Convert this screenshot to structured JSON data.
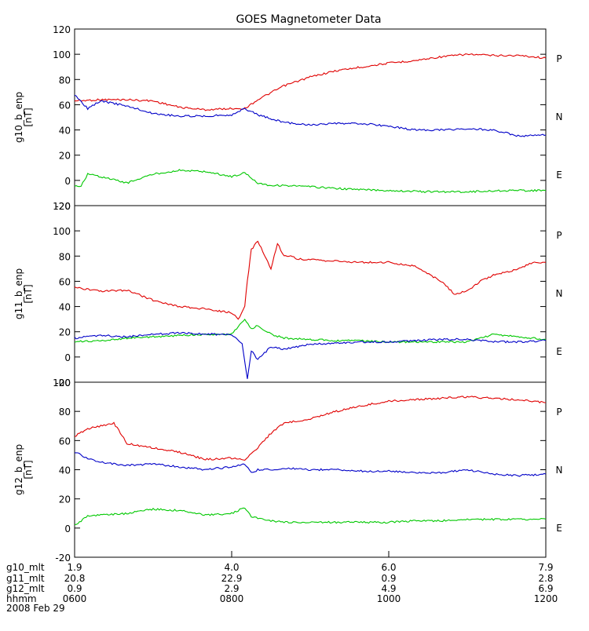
{
  "chart_data": {
    "type": "line",
    "title": "GOES Magnetometer Data",
    "date_label": "2008 Feb 29",
    "x": {
      "range": [
        "0600",
        "1200"
      ],
      "ticks": [
        "0600",
        "0800",
        "1000",
        "1200"
      ],
      "rows": [
        {
          "label": "g10_mlt",
          "values": [
            "1.9",
            "4.0",
            "6.0",
            "7.9"
          ]
        },
        {
          "label": "g11_mlt",
          "values": [
            "20.8",
            "22.9",
            "0.9",
            "2.8"
          ]
        },
        {
          "label": "g12_mlt",
          "values": [
            "0.9",
            "2.9",
            "4.9",
            "6.9"
          ]
        },
        {
          "label": "hhmm",
          "values": [
            "0600",
            "0800",
            "1000",
            "1200"
          ]
        }
      ]
    },
    "panels": [
      {
        "ylabel": "g10_b_enp",
        "units": "[nT]",
        "yrange": [
          -20,
          120
        ],
        "yticks": [
          "120",
          "100",
          "80",
          "60",
          "40",
          "20",
          "0",
          "-20"
        ],
        "legend": [
          {
            "label": "P",
            "color": "#e00000"
          },
          {
            "label": "N",
            "color": "#00c800"
          },
          {
            "label": "E",
            "color": "#0000c8"
          }
        ],
        "series": [
          {
            "name": "P",
            "color": "#e00000",
            "x": [
              "0600",
              "0620",
              "0640",
              "0700",
              "0720",
              "0740",
              "0800",
              "0810",
              "0820",
              "0840",
              "0900",
              "0920",
              "0940",
              "1000",
              "1020",
              "1040",
              "1100",
              "1120",
              "1140",
              "1200"
            ],
            "y": [
              63,
              64,
              64,
              63,
              58,
              56,
              57,
              57,
              64,
              75,
              82,
              87,
              90,
              93,
              95,
              98,
              100,
              99,
              99,
              97
            ]
          },
          {
            "name": "N",
            "color": "#00c800",
            "x": [
              "0600",
              "0605",
              "0610",
              "0620",
              "0640",
              "0700",
              "0720",
              "0740",
              "0800",
              "0810",
              "0820",
              "0830",
              "0840",
              "0900",
              "0930",
              "1000",
              "1030",
              "1100",
              "1130",
              "1200"
            ],
            "y": [
              -5,
              -4,
              5,
              3,
              -2,
              5,
              8,
              7,
              3,
              6,
              -2,
              -4,
              -4,
              -5,
              -7,
              -8,
              -9,
              -9,
              -8,
              -8
            ]
          },
          {
            "name": "E",
            "color": "#0000c8",
            "x": [
              "0600",
              "0605",
              "0610",
              "0620",
              "0640",
              "0700",
              "0720",
              "0740",
              "0800",
              "0810",
              "0820",
              "0840",
              "0900",
              "0920",
              "0940",
              "1000",
              "1020",
              "1040",
              "1100",
              "1120",
              "1140",
              "1200"
            ],
            "y": [
              68,
              62,
              57,
              63,
              59,
              53,
              51,
              51,
              52,
              57,
              52,
              46,
              44,
              45,
              45,
              43,
              40,
              40,
              41,
              40,
              35,
              36
            ]
          }
        ]
      },
      {
        "ylabel": "g11_b_enp",
        "units": "[nT]",
        "yrange": [
          -20,
          120
        ],
        "yticks": [
          "120",
          "100",
          "80",
          "60",
          "40",
          "20",
          "0",
          "-20"
        ],
        "legend": [
          {
            "label": "P",
            "color": "#e00000"
          },
          {
            "label": "N",
            "color": "#00c800"
          },
          {
            "label": "E",
            "color": "#0000c8"
          }
        ],
        "series": [
          {
            "name": "P",
            "color": "#e00000",
            "x": [
              "0600",
              "0620",
              "0640",
              "0700",
              "0720",
              "0740",
              "0800",
              "0805",
              "0810",
              "0812",
              "0815",
              "0820",
              "0830",
              "0835",
              "0840",
              "0845",
              "0850",
              "0900",
              "0920",
              "0940",
              "1000",
              "1020",
              "1040",
              "1050",
              "1100",
              "1110",
              "1120",
              "1140",
              "1150",
              "1200"
            ],
            "y": [
              55,
              52,
              53,
              45,
              40,
              38,
              35,
              30,
              40,
              60,
              85,
              92,
              70,
              90,
              80,
              80,
              78,
              77,
              76,
              75,
              75,
              72,
              60,
              50,
              52,
              60,
              65,
              70,
              75,
              75
            ]
          },
          {
            "name": "N",
            "color": "#00c800",
            "x": [
              "0600",
              "0620",
              "0640",
              "0700",
              "0720",
              "0740",
              "0800",
              "0810",
              "0815",
              "0820",
              "0830",
              "0840",
              "0900",
              "0920",
              "0940",
              "1000",
              "1020",
              "1040",
              "1100",
              "1120",
              "1140",
              "1200"
            ],
            "y": [
              12,
              13,
              15,
              16,
              17,
              18,
              18,
              30,
              22,
              25,
              18,
              15,
              14,
              13,
              13,
              12,
              12,
              12,
              12,
              18,
              16,
              14
            ]
          },
          {
            "name": "E",
            "color": "#0000c8",
            "x": [
              "0600",
              "0620",
              "0640",
              "0700",
              "0720",
              "0740",
              "0800",
              "0808",
              "0812",
              "0815",
              "0820",
              "0830",
              "0840",
              "0900",
              "0920",
              "0940",
              "1000",
              "1020",
              "1040",
              "1100",
              "1120",
              "1140",
              "1200"
            ],
            "y": [
              15,
              17,
              16,
              18,
              19,
              18,
              18,
              10,
              -18,
              5,
              -2,
              8,
              6,
              10,
              11,
              12,
              12,
              13,
              14,
              14,
              12,
              12,
              13
            ]
          }
        ]
      },
      {
        "ylabel": "g12_b_enp",
        "units": "[nT]",
        "yrange": [
          -20,
          100
        ],
        "yticks": [
          "100",
          "80",
          "60",
          "40",
          "20",
          "0",
          "-20"
        ],
        "legend": [
          {
            "label": "P",
            "color": "#e00000"
          },
          {
            "label": "N",
            "color": "#00c800"
          },
          {
            "label": "E",
            "color": "#0000c8"
          }
        ],
        "series": [
          {
            "name": "P",
            "color": "#e00000",
            "x": [
              "0600",
              "0610",
              "0620",
              "0630",
              "0640",
              "0700",
              "0720",
              "0740",
              "0800",
              "0810",
              "0820",
              "0830",
              "0840",
              "0900",
              "0920",
              "0940",
              "1000",
              "1020",
              "1040",
              "1100",
              "1120",
              "1140",
              "1200"
            ],
            "y": [
              63,
              68,
              70,
              72,
              58,
              55,
              52,
              47,
              48,
              47,
              55,
              65,
              72,
              75,
              80,
              84,
              87,
              88,
              89,
              90,
              89,
              88,
              86
            ]
          },
          {
            "name": "N",
            "color": "#00c800",
            "x": [
              "0600",
              "0605",
              "0610",
              "0620",
              "0640",
              "0700",
              "0720",
              "0740",
              "0800",
              "0810",
              "0815",
              "0820",
              "0830",
              "0840",
              "0900",
              "0920",
              "0940",
              "1000",
              "1020",
              "1040",
              "1100",
              "1120",
              "1140",
              "1200"
            ],
            "y": [
              2,
              5,
              8,
              9,
              10,
              13,
              12,
              9,
              10,
              14,
              8,
              7,
              5,
              4,
              4,
              4,
              4,
              4,
              5,
              5,
              6,
              6,
              6,
              6
            ]
          },
          {
            "name": "E",
            "color": "#0000c8",
            "x": [
              "0600",
              "0610",
              "0620",
              "0630",
              "0640",
              "0700",
              "0720",
              "0740",
              "0800",
              "0810",
              "0815",
              "0820",
              "0830",
              "0840",
              "0900",
              "0920",
              "0940",
              "1000",
              "1020",
              "1040",
              "1100",
              "1120",
              "1140",
              "1200"
            ],
            "y": [
              52,
              48,
              45,
              44,
              43,
              44,
              42,
              40,
              42,
              44,
              38,
              40,
              40,
              41,
              40,
              40,
              39,
              39,
              38,
              38,
              40,
              37,
              36,
              37
            ]
          }
        ]
      }
    ]
  }
}
